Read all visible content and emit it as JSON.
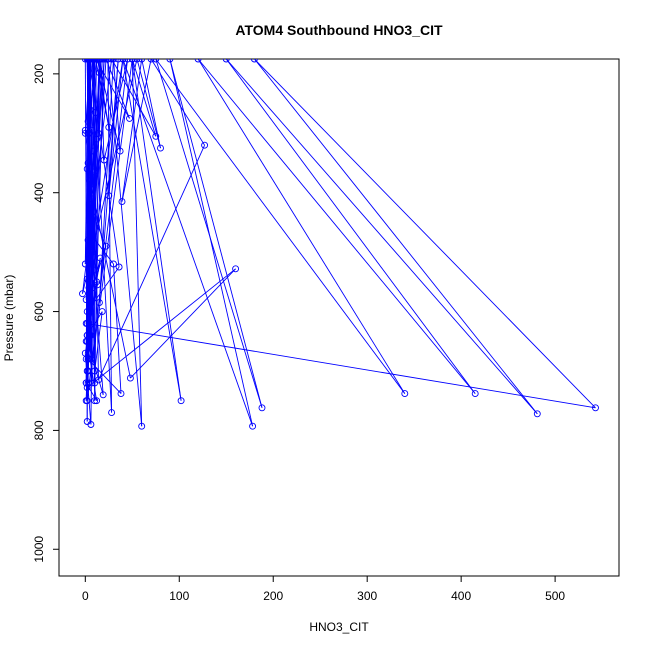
{
  "chart_data": {
    "type": "scatter",
    "title": "ATOM4 Southbound HNO3_CIT",
    "xlabel": "HNO3_CIT",
    "ylabel": "Pressure (mbar)",
    "xlim": [
      -28,
      568
    ],
    "ylim": [
      1045,
      175
    ],
    "y_reversed": true,
    "x_ticks": [
      0,
      100,
      200,
      300,
      400,
      500
    ],
    "y_ticks": [
      200,
      400,
      600,
      800,
      1000
    ],
    "grid": false,
    "legend": "none",
    "series_color": "#0000ff",
    "series": [
      {
        "mode": "lines+markers",
        "points": [
          [
            0,
            175
          ],
          [
            2,
            785
          ],
          [
            5,
            175
          ],
          [
            1,
            720
          ],
          [
            3,
            175
          ],
          [
            0,
            520
          ],
          [
            6,
            175
          ],
          [
            2,
            620
          ],
          [
            4,
            175
          ],
          [
            1,
            680
          ],
          [
            8,
            175
          ],
          [
            0,
            295
          ],
          [
            3,
            300
          ],
          [
            12,
            175
          ],
          [
            5,
            640
          ],
          [
            2,
            175
          ],
          [
            7,
            720
          ],
          [
            10,
            175
          ],
          [
            1,
            750
          ],
          [
            15,
            175
          ],
          [
            4,
            560
          ],
          [
            20,
            175
          ],
          [
            12,
            550
          ],
          [
            3,
            175
          ],
          [
            10,
            720
          ],
          [
            9,
            175
          ],
          [
            14,
            300
          ],
          [
            18,
            175
          ],
          [
            6,
            600
          ],
          [
            22,
            175
          ],
          [
            47,
            275
          ],
          [
            11,
            175
          ],
          [
            25,
            290
          ],
          [
            13,
            175
          ],
          [
            37,
            330
          ],
          [
            30,
            175
          ],
          [
            15,
            585
          ],
          [
            35,
            175
          ],
          [
            25,
            405
          ],
          [
            40,
            175
          ],
          [
            8,
            500
          ],
          [
            16,
            175
          ],
          [
            20,
            345
          ],
          [
            45,
            175
          ],
          [
            2,
            750
          ],
          [
            50,
            175
          ],
          [
            75,
            305
          ],
          [
            28,
            175
          ],
          [
            -3,
            570
          ],
          [
            55,
            175
          ],
          [
            80,
            325
          ],
          [
            60,
            175
          ],
          [
            39,
            415
          ],
          [
            70,
            175
          ],
          [
            127,
            320
          ],
          [
            14,
            715
          ],
          [
            8,
            175
          ],
          [
            28,
            770
          ],
          [
            24,
            175
          ],
          [
            60,
            793
          ],
          [
            50,
            175
          ],
          [
            102,
            750
          ],
          [
            40,
            175
          ],
          [
            178,
            793
          ],
          [
            90,
            175
          ],
          [
            188,
            762
          ],
          [
            75,
            175
          ],
          [
            340,
            738
          ],
          [
            120,
            175
          ],
          [
            415,
            738
          ],
          [
            150,
            175
          ],
          [
            481,
            772
          ],
          [
            180,
            175
          ],
          [
            543,
            762
          ],
          [
            1,
            620
          ],
          [
            15,
            198
          ],
          [
            10,
            750
          ],
          [
            5,
            175
          ],
          [
            0,
            300
          ],
          [
            7,
            385
          ],
          [
            3,
            480
          ],
          [
            6,
            640
          ],
          [
            2,
            700
          ],
          [
            4,
            560
          ],
          [
            1,
            580
          ],
          [
            11,
            265
          ],
          [
            8,
            440
          ],
          [
            5,
            520
          ],
          [
            3,
            720
          ],
          [
            1,
            650
          ],
          [
            2,
            545
          ],
          [
            4,
            430
          ],
          [
            3,
            350
          ],
          [
            5,
            260
          ],
          [
            2,
            360
          ],
          [
            6,
            680
          ],
          [
            4,
            620
          ],
          [
            7,
            295
          ],
          [
            3,
            280
          ],
          [
            5,
            450
          ],
          [
            2,
            600
          ],
          [
            36,
            525
          ],
          [
            4,
            175
          ],
          [
            9,
            330
          ],
          [
            6,
            410
          ],
          [
            13,
            555
          ],
          [
            2,
            640
          ],
          [
            11,
            530
          ],
          [
            4,
            420
          ],
          [
            22,
            490
          ],
          [
            8,
            560
          ],
          [
            3,
            700
          ],
          [
            12,
            310
          ],
          [
            5,
            580
          ],
          [
            16,
            510
          ],
          [
            0,
            670
          ],
          [
            6,
            790
          ],
          [
            9,
            365
          ],
          [
            2,
            640
          ],
          [
            18,
            600
          ],
          [
            10,
            700
          ],
          [
            4,
            300
          ],
          [
            7,
            480
          ],
          [
            5,
            380
          ],
          [
            48,
            712
          ],
          [
            160,
            528
          ],
          [
            2,
            728
          ],
          [
            3,
            680
          ],
          [
            38,
            738
          ],
          [
            30,
            520
          ],
          [
            6,
            470
          ],
          [
            19,
            740
          ],
          [
            2,
            650
          ],
          [
            12,
            750
          ],
          [
            1,
            720
          ]
        ]
      }
    ]
  }
}
